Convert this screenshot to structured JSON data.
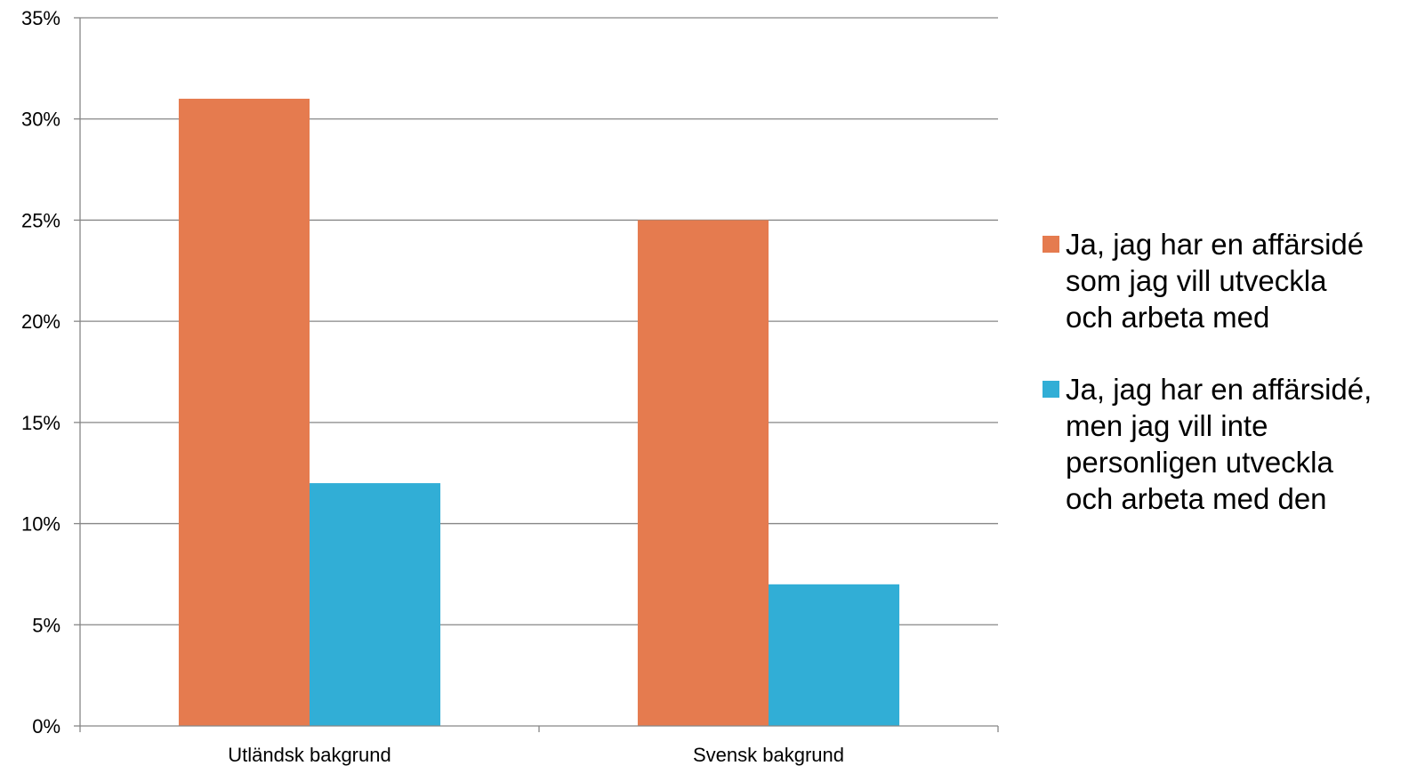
{
  "chart_data": {
    "type": "bar",
    "categories": [
      "Utländsk bakgrund",
      "Svensk bakgrund"
    ],
    "series": [
      {
        "name": "Ja, jag har en affärsidé\nsom jag vill utveckla\noch arbeta med",
        "color": "#E57B4F",
        "values": [
          31,
          25
        ]
      },
      {
        "name": "Ja, jag har en affärsidé,\nmen jag vill inte\npersonligen utveckla\noch arbeta med den",
        "color": "#31AED6",
        "values": [
          12,
          7
        ]
      }
    ],
    "ylim": [
      0,
      35
    ],
    "yticks": [
      "0%",
      "5%",
      "10%",
      "15%",
      "20%",
      "25%",
      "30%",
      "35%"
    ],
    "grid": true,
    "legend": "right"
  }
}
